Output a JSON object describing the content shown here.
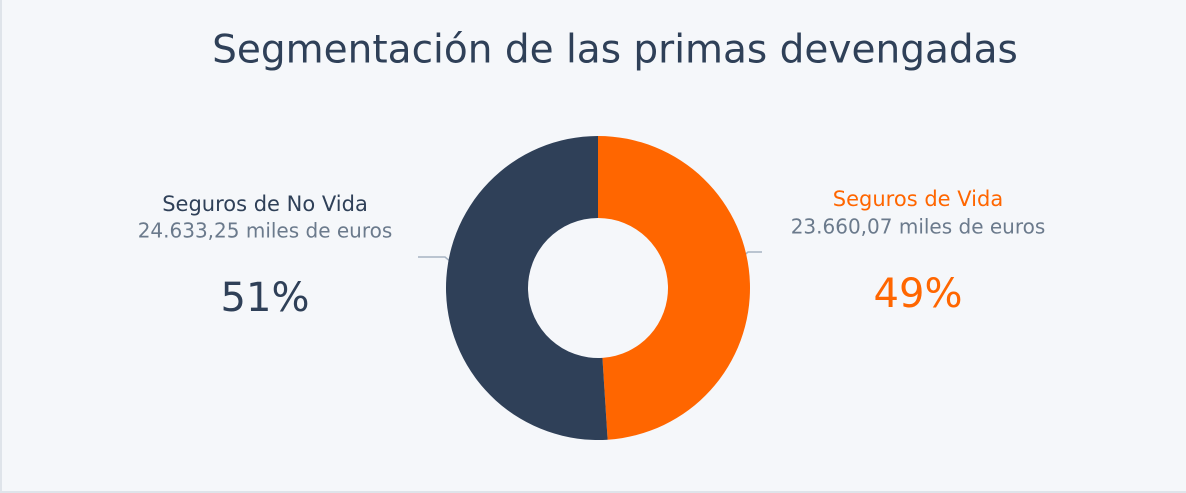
{
  "chart_data": {
    "type": "donut",
    "title": "Segmentación de las primas devengadas",
    "categories": [
      "Seguros de Vida",
      "Seguros de No Vida"
    ],
    "colors": [
      "#ff6600",
      "#2f4058"
    ],
    "values": [
      49,
      51
    ],
    "value_labels": [
      "49%",
      "51%"
    ],
    "amounts": [
      23660.07,
      24633.25
    ],
    "amount_labels": [
      "23.660,07 miles de euros",
      "24.633,25 miles de euros"
    ]
  }
}
